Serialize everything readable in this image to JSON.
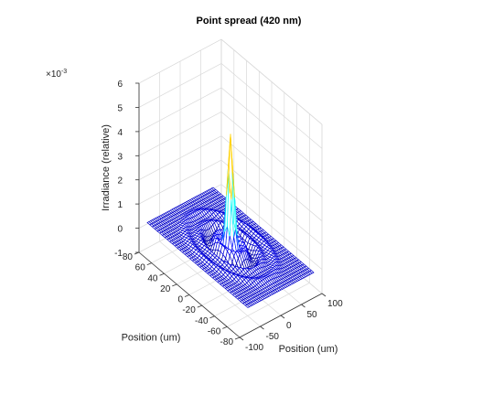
{
  "chart_data": {
    "type": "surface-mesh",
    "title": "Point spread (420 nm)",
    "xlabel": "Position (um)",
    "ylabel": "Position (um)",
    "zlabel": "Irradiance (relative)",
    "z_exponent_label": "×10",
    "z_exponent_power": "-3",
    "xlim": [
      -100,
      100
    ],
    "ylim": [
      -80,
      80
    ],
    "zlim": [
      -1,
      6
    ],
    "x_ticks": [
      "-100",
      "-50",
      "0",
      "50",
      "100"
    ],
    "y_ticks": [
      "80",
      "60",
      "40",
      "20",
      "0",
      "-20",
      "-40",
      "-60",
      "-80"
    ],
    "z_ticks": [
      "-1",
      "0",
      "1",
      "2",
      "3",
      "4",
      "5",
      "6"
    ],
    "x_tick_values": [
      -100,
      -50,
      0,
      50,
      100
    ],
    "y_tick_values": [
      80,
      60,
      40,
      20,
      0,
      -20,
      -40,
      -60,
      -80
    ],
    "z_tick_values": [
      -1,
      0,
      1,
      2,
      3,
      4,
      5,
      6
    ],
    "surface": {
      "x_range": [
        -80,
        80
      ],
      "y_range": [
        -80,
        80
      ],
      "peak_value": 4.7,
      "background_value": 0.05,
      "ring_radii": [
        20,
        40,
        60
      ],
      "colormap": "jet",
      "grid": true
    }
  }
}
